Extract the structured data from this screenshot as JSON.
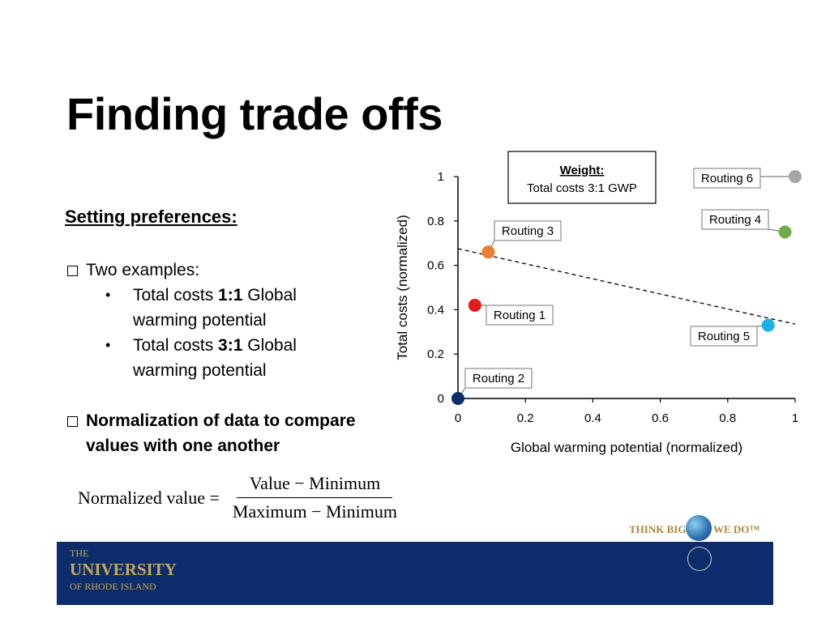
{
  "title": "Finding trade offs",
  "subheading": "Setting preferences:",
  "examples_heading": "Two examples:",
  "examples": [
    {
      "pre": "Total costs ",
      "ratio": "1:1",
      "post": " Global",
      "line2": "warming potential"
    },
    {
      "pre": "Total costs ",
      "ratio": "3:1",
      "post": " Global",
      "line2": "warming potential"
    }
  ],
  "normalization_line1": "Normalization of data to compare",
  "normalization_line2": "values with one another",
  "formula": {
    "lhs": "Normalized value =",
    "numerator": "Value − Minimum",
    "denominator": "Maximum − Minimum"
  },
  "chart_data": {
    "type": "scatter",
    "xlabel": "Global warming potential (normalized)",
    "ylabel": "Total costs (normalized)",
    "xlim": [
      0,
      1
    ],
    "ylim": [
      0,
      1
    ],
    "xticks": [
      "0",
      "0.2",
      "0.4",
      "0.6",
      "0.8",
      "1"
    ],
    "yticks": [
      "0",
      "0.2",
      "0.4",
      "0.6",
      "0.8",
      "1"
    ],
    "weight_box": {
      "title": "Weight:",
      "text": "Total costs 3:1 GWP"
    },
    "points": [
      {
        "label": "Routing 1",
        "x": 0.05,
        "y": 0.42,
        "color": "#e41a1c"
      },
      {
        "label": "Routing 2",
        "x": 0.0,
        "y": 0.0,
        "color": "#0d2c6c"
      },
      {
        "label": "Routing 3",
        "x": 0.09,
        "y": 0.66,
        "color": "#ed7d31"
      },
      {
        "label": "Routing 4",
        "x": 0.97,
        "y": 0.75,
        "color": "#70ad47"
      },
      {
        "label": "Routing 5",
        "x": 0.92,
        "y": 0.33,
        "color": "#1ab0e8"
      },
      {
        "label": "Routing 6",
        "x": 1.0,
        "y": 1.0,
        "color": "#a6a6a6"
      }
    ],
    "trend_line": {
      "x1": 0.0,
      "y1": 0.675,
      "x2": 1.0,
      "y2": 0.335
    }
  },
  "footer": {
    "logo_line1": "THE",
    "logo_line2": "UNIVERSITY",
    "logo_line3": "OF RHODE ISLAND",
    "tagline_left": "THINK BIG",
    "tagline_right": "WE DO™"
  },
  "colors": {
    "footer_bg": "#0d2c6c",
    "gold": "#c9a850"
  }
}
